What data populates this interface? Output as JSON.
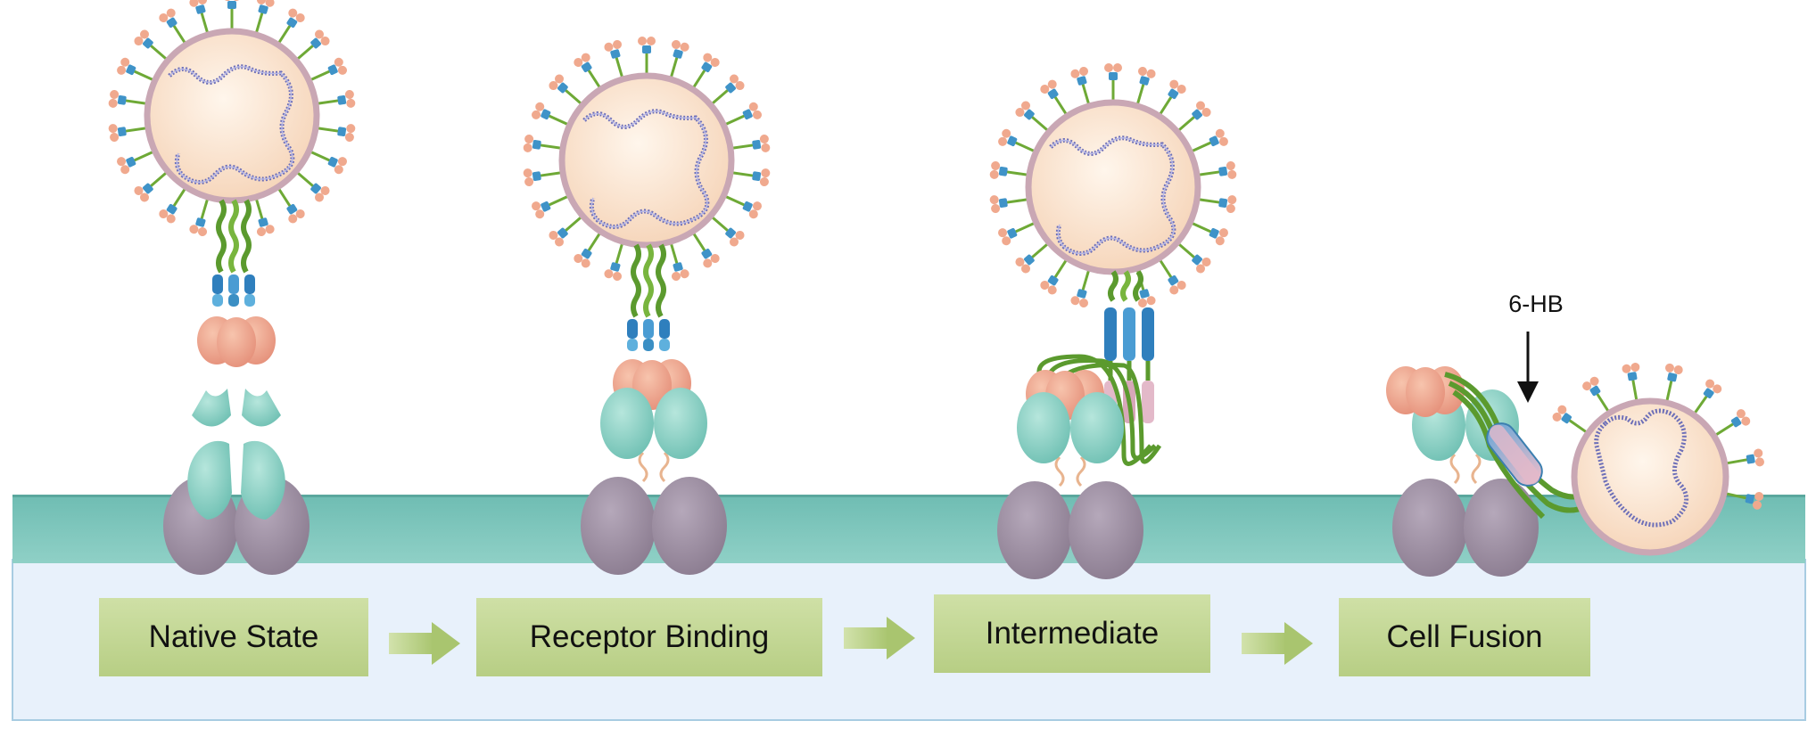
{
  "stages": [
    {
      "label": "Native State"
    },
    {
      "label": "Receptor Binding"
    },
    {
      "label": "Intermediate"
    },
    {
      "label": "Cell Fusion"
    }
  ],
  "annotation": {
    "label": "6-HB"
  },
  "colors": {
    "membrane": "#7ec6bd",
    "cytoplasm": "#e9f2fb",
    "stage_box": "#c3d894",
    "virion": "#fbe3cc",
    "envelope": "#c9a7b4",
    "receptor": "#9a8b9e",
    "binding_domain": "#8fd1c6",
    "rbd": "#f0a98e",
    "stalk": "#5b9a2e",
    "helix": "#3b8fc4",
    "helix2": "#e3b9c9",
    "rna": "#6d6fb8"
  },
  "icons": [
    "virion",
    "spike-protein",
    "host-receptor",
    "membrane",
    "flow-arrow",
    "down-arrow"
  ]
}
